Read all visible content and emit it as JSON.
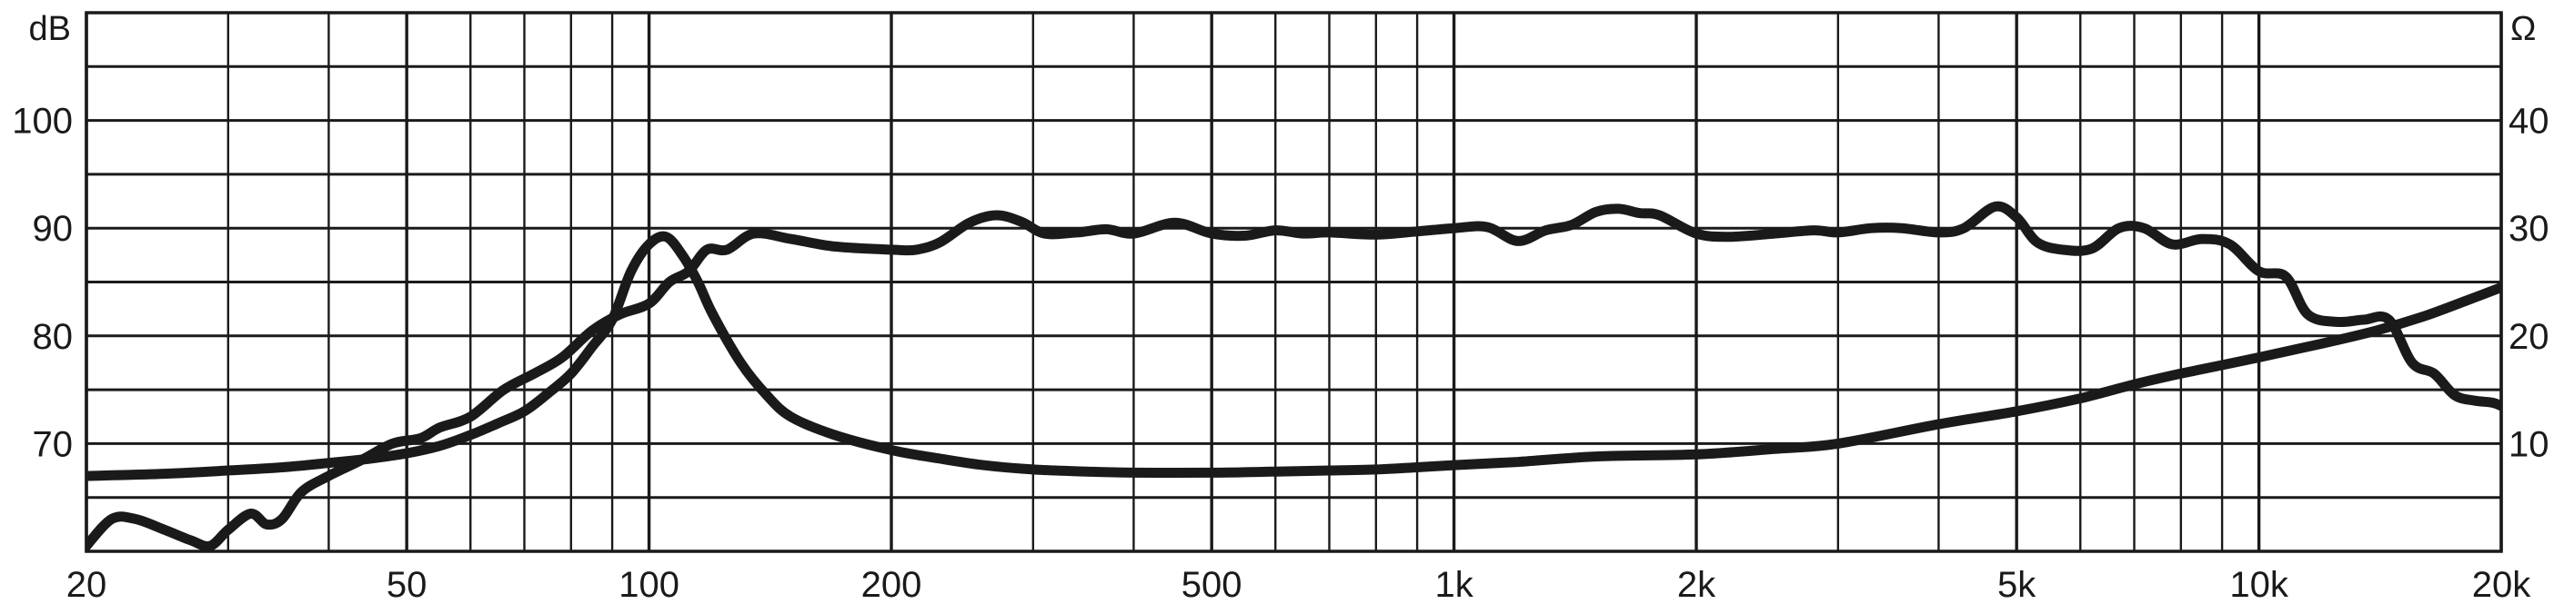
{
  "chart_data": {
    "type": "line",
    "title": "",
    "xlabel": "",
    "x_scale": "log",
    "xlim": [
      20,
      20000
    ],
    "x_ticks": [
      {
        "value": 20,
        "label": "20"
      },
      {
        "value": 50,
        "label": "50"
      },
      {
        "value": 100,
        "label": "100"
      },
      {
        "value": 200,
        "label": "200"
      },
      {
        "value": 500,
        "label": "500"
      },
      {
        "value": 1000,
        "label": "1k"
      },
      {
        "value": 2000,
        "label": "2k"
      },
      {
        "value": 5000,
        "label": "5k"
      },
      {
        "value": 10000,
        "label": "10k"
      },
      {
        "value": 20000,
        "label": "20k"
      }
    ],
    "y_left": {
      "unit": "dB",
      "ylim": [
        60,
        110
      ],
      "ticks": [
        {
          "value": 70,
          "label": "70"
        },
        {
          "value": 80,
          "label": "80"
        },
        {
          "value": 90,
          "label": "90"
        },
        {
          "value": 100,
          "label": "100"
        }
      ]
    },
    "y_right": {
      "unit": "Ω",
      "ylim": [
        0,
        50
      ],
      "ticks": [
        {
          "value": 10,
          "label": "10"
        },
        {
          "value": 20,
          "label": "20"
        },
        {
          "value": 30,
          "label": "30"
        },
        {
          "value": 40,
          "label": "40"
        }
      ]
    },
    "grid": true,
    "legend": "none",
    "series": [
      {
        "axis": "left",
        "color": "#1a1a1a",
        "x": [
          20,
          21.5,
          23,
          25,
          27,
          28.5,
          30,
          32,
          33.5,
          35,
          37,
          40,
          44,
          48,
          52,
          55,
          60,
          66,
          72,
          78,
          85,
          92,
          100,
          106,
          112,
          118,
          125,
          135,
          150,
          170,
          200,
          215,
          230,
          250,
          270,
          290,
          310,
          340,
          370,
          400,
          450,
          500,
          550,
          600,
          650,
          700,
          800,
          900,
          1000,
          1100,
          1200,
          1300,
          1400,
          1500,
          1600,
          1700,
          1800,
          2000,
          2200,
          2500,
          2800,
          3000,
          3300,
          3600,
          4000,
          4300,
          4700,
          5000,
          5300,
          5700,
          6200,
          6700,
          7200,
          7800,
          8500,
          9200,
          10000,
          10800,
          11500,
          12500,
          13500,
          14500,
          15500,
          16500,
          17500,
          18500,
          19500,
          20000
        ],
        "y": [
          60.5,
          63,
          63,
          62,
          61,
          60.5,
          62,
          63.5,
          62.5,
          63,
          65.5,
          67,
          68.5,
          70,
          70.5,
          71.5,
          72.5,
          75,
          76.5,
          78,
          80.5,
          82,
          83,
          85,
          86,
          88,
          88,
          89.5,
          89,
          88.3,
          88,
          88,
          88.7,
          90.5,
          91.2,
          90.6,
          89.5,
          89.6,
          89.9,
          89.5,
          90.5,
          89.5,
          89.3,
          89.8,
          89.5,
          89.6,
          89.4,
          89.7,
          90,
          90.1,
          88.8,
          89.8,
          90.3,
          91.5,
          91.8,
          91.4,
          91.2,
          89.5,
          89.2,
          89.5,
          89.8,
          89.6,
          90,
          90,
          89.6,
          90,
          92,
          91,
          88.7,
          88,
          88.1,
          90,
          90,
          88.5,
          89,
          88.5,
          86,
          85.5,
          82,
          81.3,
          81.5,
          81.5,
          77.5,
          76.5,
          74.5,
          74,
          73.8,
          73.5
        ]
      },
      {
        "axis": "right",
        "color": "#1a1a1a",
        "x": [
          20,
          25,
          30,
          35,
          40,
          45,
          50,
          55,
          60,
          65,
          70,
          75,
          80,
          85,
          90,
          95,
          100,
          105,
          110,
          115,
          120,
          130,
          140,
          150,
          170,
          200,
          230,
          260,
          300,
          350,
          400,
          500,
          600,
          700,
          800,
          900,
          1000,
          1200,
          1500,
          2000,
          2500,
          3000,
          4000,
          5000,
          6000,
          7000,
          8000,
          10000,
          12000,
          14000,
          16000,
          18000,
          20000
        ],
        "y": [
          7,
          7.2,
          7.5,
          7.8,
          8.2,
          8.6,
          9.1,
          9.8,
          10.8,
          11.9,
          13,
          14.7,
          16.5,
          19,
          21.5,
          26,
          28.5,
          29.2,
          27.5,
          25,
          22,
          17.5,
          14.5,
          12.5,
          10.8,
          9.4,
          8.6,
          8,
          7.6,
          7.4,
          7.3,
          7.3,
          7.4,
          7.5,
          7.6,
          7.8,
          8,
          8.3,
          8.8,
          9,
          9.5,
          10,
          11.8,
          13,
          14.2,
          15.5,
          16.5,
          18,
          19.3,
          20.5,
          21.8,
          23.2,
          24.5
        ]
      }
    ]
  }
}
